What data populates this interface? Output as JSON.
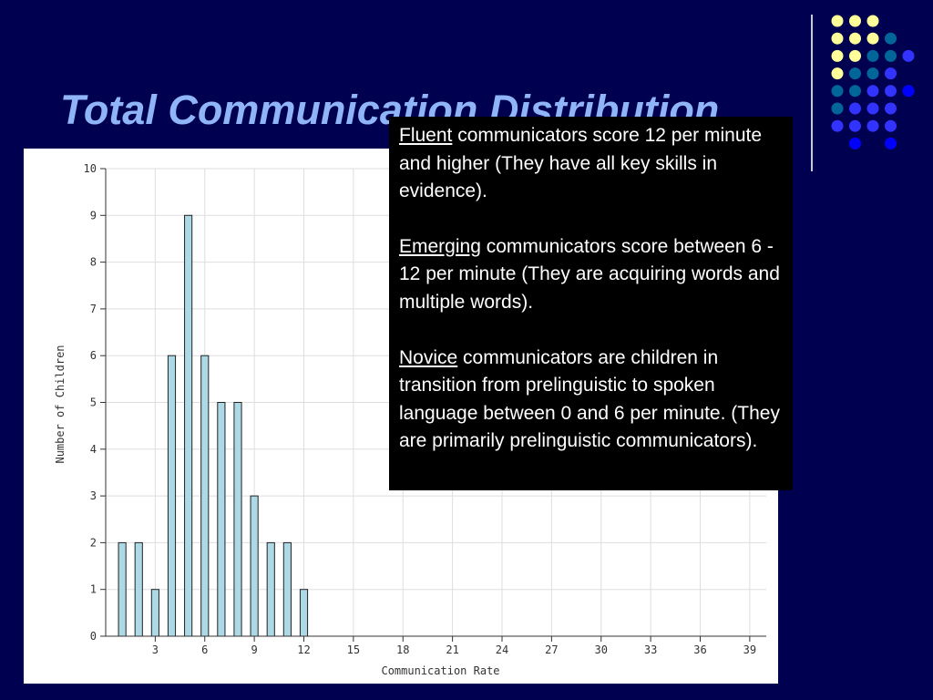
{
  "slide": {
    "title": "Total Communication Distribution",
    "decor_colors": {
      "yellow": "#ffff99",
      "teal": "#006699",
      "blue": "#3333ff",
      "bright_blue": "#0000ff"
    }
  },
  "callout": {
    "paragraphs": [
      {
        "term": "Fluent",
        "text": " communicators score 12 per minute and higher (They have all key skills in evidence)."
      },
      {
        "term": "Emerging",
        "text": " communicators score between 6 - 12 per minute (They are acquiring words and multiple words)."
      },
      {
        "term": "Novice",
        "text": " communicators are children in transition from prelinguistic to spoken language between 0 and 6 per minute. (They are primarily prelinguistic communicators)."
      }
    ]
  },
  "chart_data": {
    "type": "bar",
    "xlabel": "Communication Rate",
    "ylabel": "Number of Children",
    "ylim": [
      0,
      10
    ],
    "xlim": [
      0,
      40
    ],
    "x_ticks": [
      3,
      6,
      9,
      12,
      15,
      18,
      21,
      24,
      27,
      30,
      33,
      36,
      39
    ],
    "y_ticks": [
      0,
      1,
      2,
      3,
      4,
      5,
      6,
      7,
      8,
      9,
      10
    ],
    "grid": true,
    "bar_color": "#add8e6",
    "bars": [
      {
        "x": 1,
        "value": 2
      },
      {
        "x": 2,
        "value": 2
      },
      {
        "x": 3,
        "value": 1
      },
      {
        "x": 4,
        "value": 6
      },
      {
        "x": 5,
        "value": 9
      },
      {
        "x": 6,
        "value": 6
      },
      {
        "x": 7,
        "value": 5
      },
      {
        "x": 8,
        "value": 5
      },
      {
        "x": 9,
        "value": 3
      },
      {
        "x": 10,
        "value": 2
      },
      {
        "x": 11,
        "value": 2
      },
      {
        "x": 12,
        "value": 1
      }
    ]
  }
}
